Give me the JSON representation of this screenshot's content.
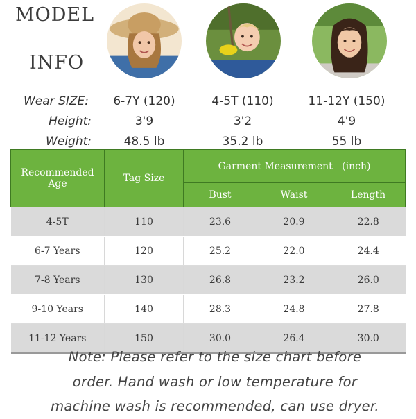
{
  "header": {
    "title_line1": "MODEL",
    "title_line2": "INFO"
  },
  "models": {
    "labels": {
      "size": "Wear SIZE:",
      "height": "Height:",
      "weight": "Weight:"
    },
    "items": [
      {
        "size": "6-7Y (120)",
        "height": "3'9",
        "weight": "48.5 lb"
      },
      {
        "size": "4-5T (110)",
        "height": "3'2",
        "weight": "35.2 lb"
      },
      {
        "size": "11-12Y (150)",
        "height": "4'9",
        "weight": "55 lb"
      }
    ]
  },
  "table": {
    "headers": {
      "age": "Recommended Age",
      "tag": "Tag Size",
      "garment": "Garment Measurement   (inch)",
      "bust": "Bust",
      "waist": "Waist",
      "length": "Length"
    },
    "rows": [
      {
        "age": "4-5T",
        "tag": "110",
        "bust": "23.6",
        "waist": "20.9",
        "length": "22.8"
      },
      {
        "age": "6-7 Years",
        "tag": "120",
        "bust": "25.2",
        "waist": "22.0",
        "length": "24.4"
      },
      {
        "age": "7-8 Years",
        "tag": "130",
        "bust": "26.8",
        "waist": "23.2",
        "length": "26.0"
      },
      {
        "age": "9-10 Years",
        "tag": "140",
        "bust": "28.3",
        "waist": "24.8",
        "length": "27.8"
      },
      {
        "age": "11-12 Years",
        "tag": "150",
        "bust": "30.0",
        "waist": "26.4",
        "length": "30.0"
      }
    ]
  },
  "note": {
    "line1": "Note: Please refer to the size chart before",
    "line2": "order. Hand wash or low temperature for",
    "line3": "machine wash is recommended, can use dryer."
  },
  "colors": {
    "header_green": "#6db33f",
    "row_shade": "#dadada"
  }
}
